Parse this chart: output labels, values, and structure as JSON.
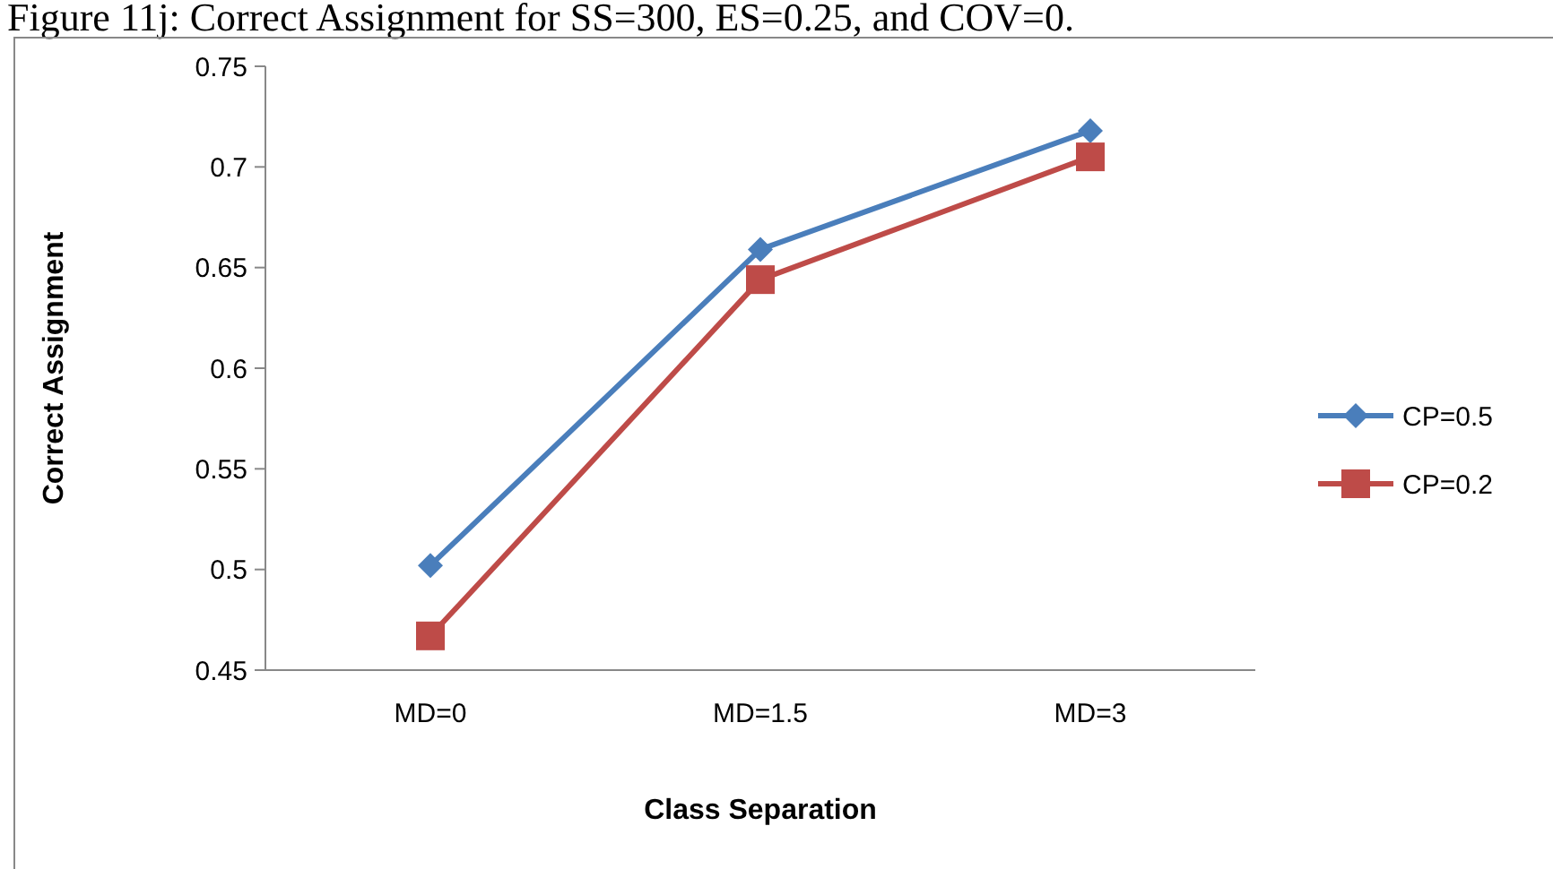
{
  "chart_data": {
    "type": "line",
    "title": "Figure 11j: Correct Assignment for SS=300, ES=0.25, and COV=0.",
    "xlabel": "Class Separation",
    "ylabel": "Correct Assignment",
    "categories": [
      "MD=0",
      "MD=1.5",
      "MD=3"
    ],
    "series": [
      {
        "name": "CP=0.5",
        "color": "#4a7ebb",
        "values": [
          0.502,
          0.659,
          0.718
        ],
        "marker": "diamond"
      },
      {
        "name": "CP=0.2",
        "color": "#be4b48",
        "values": [
          0.467,
          0.644,
          0.705
        ],
        "marker": "square"
      }
    ],
    "ylim": [
      0.45,
      0.75
    ],
    "yticks": [
      0.45,
      0.5,
      0.55,
      0.6,
      0.65,
      0.7,
      0.75
    ],
    "grid": false,
    "legend": "right",
    "line_style": "solid"
  }
}
